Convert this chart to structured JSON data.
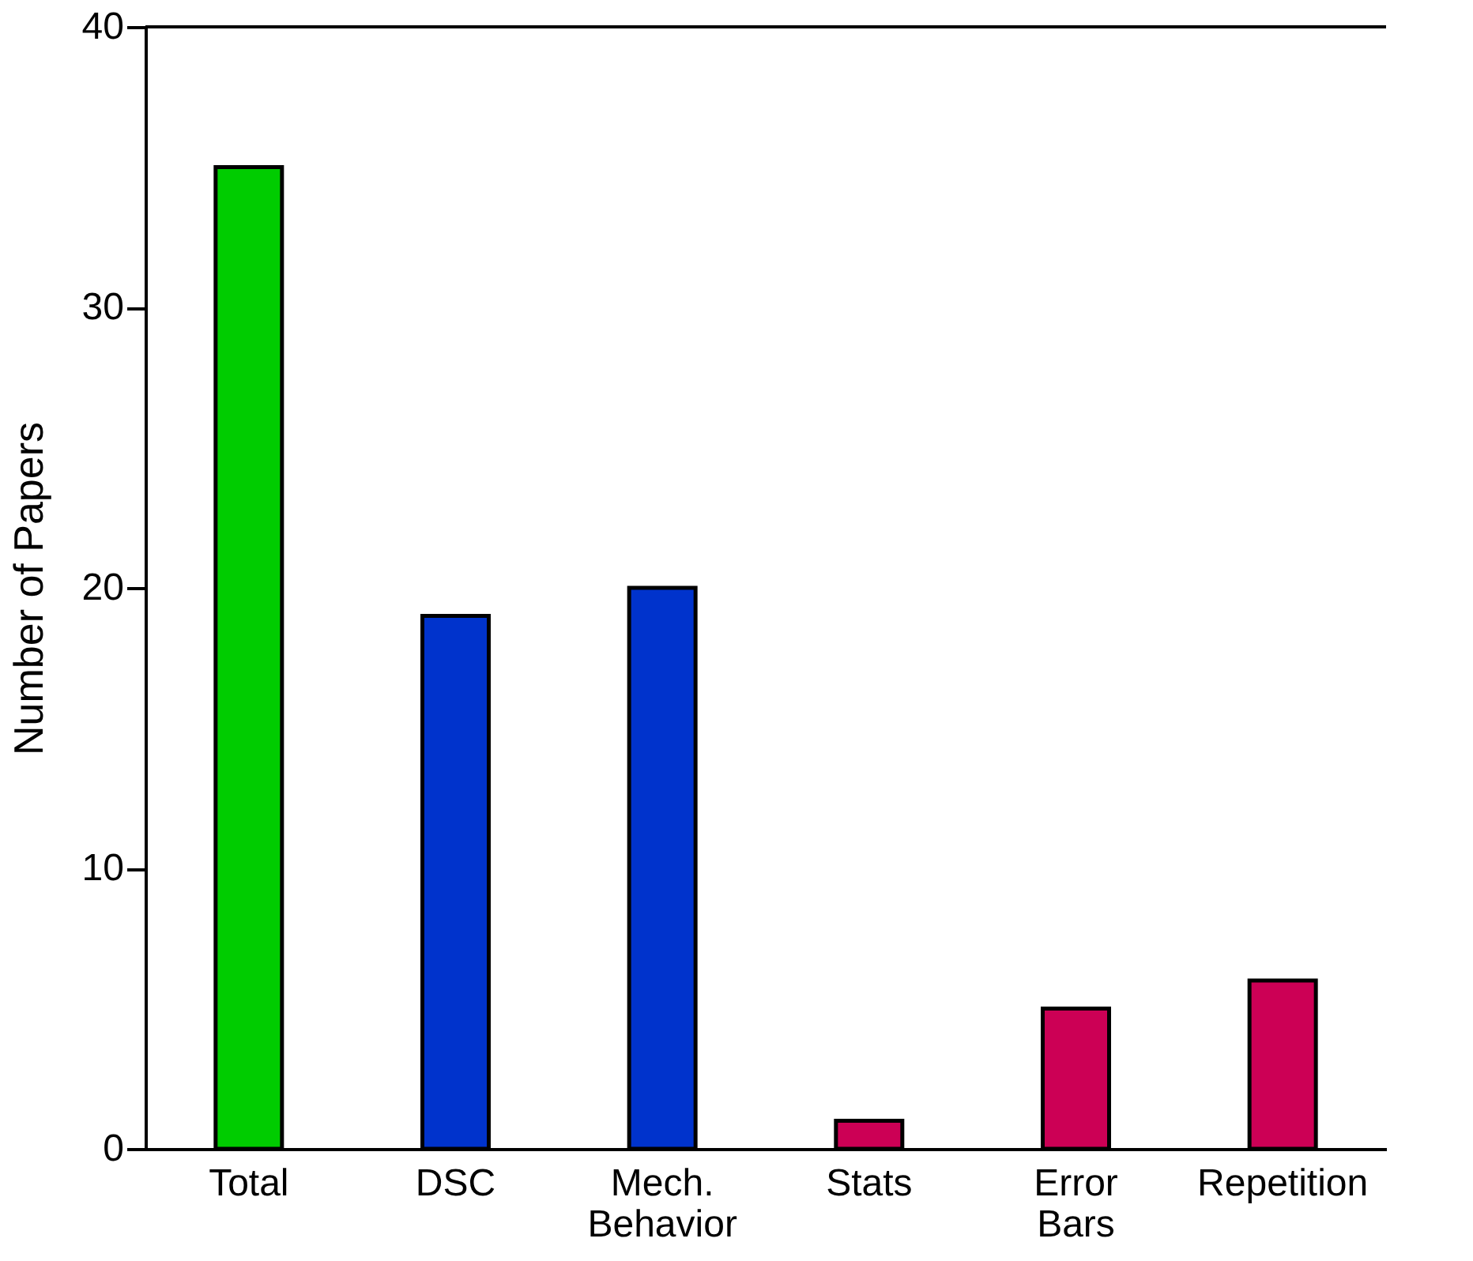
{
  "chart_data": {
    "type": "bar",
    "ylabel": "Number of Papers",
    "categories": [
      "Total",
      "DSC",
      "Mech. Behavior",
      "Stats",
      "Error Bars",
      "Repetition"
    ],
    "values": [
      35,
      19,
      20,
      1,
      5,
      6
    ],
    "colors": [
      "#00cc00",
      "#0033cc",
      "#0033cc",
      "#cc0055",
      "#cc0055",
      "#cc0055"
    ],
    "ylim": [
      0,
      40
    ],
    "yticks": [
      0,
      10,
      20,
      30,
      40
    ],
    "grid": false
  }
}
